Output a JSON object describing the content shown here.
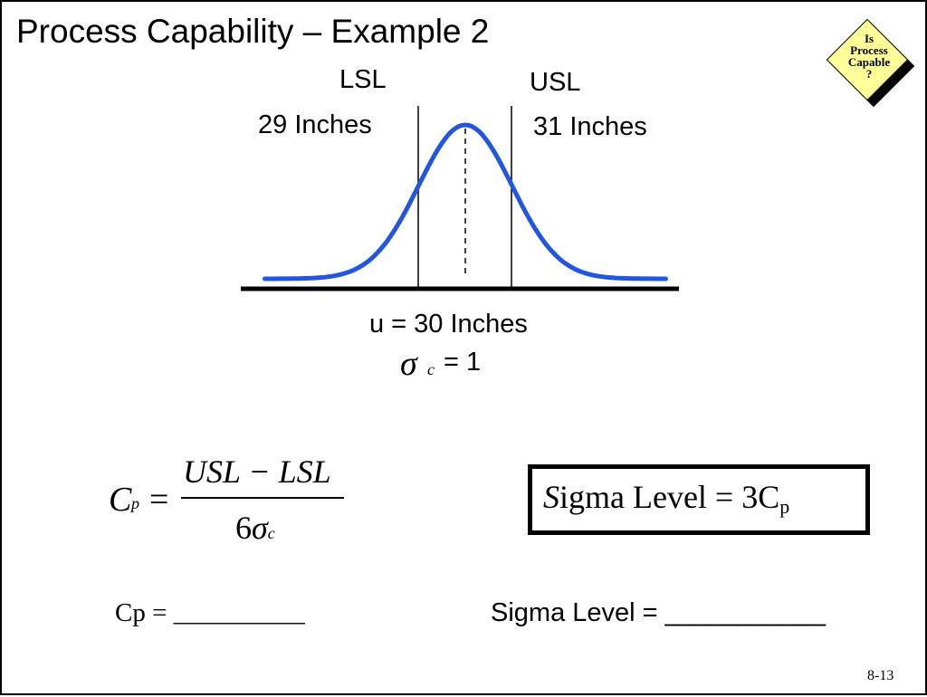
{
  "title": "Process Capability – Example 2",
  "badge": {
    "line1": "Is",
    "line2": "Process",
    "line3": "Capable",
    "line4": "?",
    "fill_color": "#ffff99"
  },
  "lsl": {
    "label": "LSL",
    "value": "29 Inches"
  },
  "usl": {
    "label": "USL",
    "value": "31 Inches"
  },
  "mean_text": "u = 30 Inches",
  "sigma": {
    "symbol": "σ",
    "subscript": "c",
    "value": "= 1"
  },
  "cp_formula": {
    "lhs": "C",
    "lhs_sub": "p",
    "equals": "=",
    "numerator": "USL − LSL",
    "denominator_number": "6",
    "denominator_symbol": "σ",
    "denominator_sub": "c"
  },
  "sigma_level_formula": {
    "lead": "S",
    "rest": "igma  Level = 3C",
    "sub": "p"
  },
  "blanks": {
    "cp": "Cp = __________",
    "sigma_level": "Sigma Level = ___________"
  },
  "page_number": "8-13",
  "chart_data": {
    "type": "line",
    "curve": "normal distribution",
    "mean": 30,
    "sigma": 1,
    "lsl": 29,
    "usl": 31,
    "curve_color": "#2255e0"
  }
}
